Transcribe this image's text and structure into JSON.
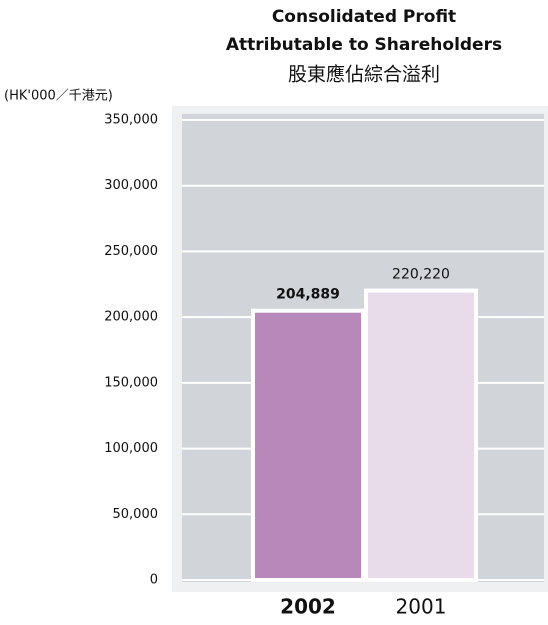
{
  "chart_data": {
    "type": "bar",
    "title": [
      "Consolidated Profit",
      "Attributable to Shareholders"
    ],
    "subtitle": "股東應佔綜合溢利",
    "y_label": "(HK'000／千港元)",
    "categories": [
      "2002",
      "2001"
    ],
    "values": [
      204889,
      220220
    ],
    "value_labels": [
      "204,889",
      "220,220"
    ],
    "colors": [
      "#b888bb",
      "#e8dcea"
    ],
    "ylim": [
      0,
      350000
    ],
    "yticks": [
      0,
      {
        "value": 50000,
        "label": "50,000"
      },
      {
        "value": 100000,
        "label": "100,000"
      },
      {
        "value": 150000,
        "label": "150,000"
      },
      {
        "value": 200000,
        "label": "200,000"
      },
      {
        "value": 250000,
        "label": "250,000"
      },
      {
        "value": 300000,
        "label": "300,000"
      },
      {
        "value": 350000,
        "label": "350,000"
      }
    ],
    "grid": true
  }
}
